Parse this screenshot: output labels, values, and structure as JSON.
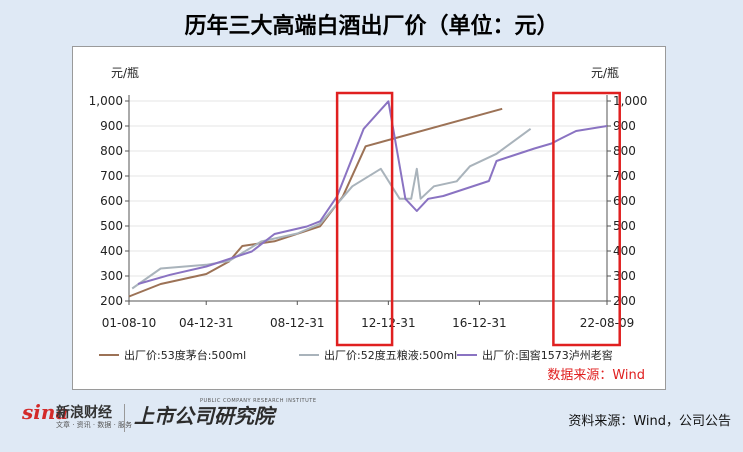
{
  "title": "历年三大高端白酒出厂价（单位：元）",
  "footer": {
    "source": "资料来源：Wind，公司公告",
    "sina_logo": "sina",
    "sina_name": "新浪财经",
    "sina_sub": "文章 · 资讯 · 数据 · 服务",
    "institute_name": "上市公司研究院",
    "institute_sub": "PUBLIC COMPANY RESEARCH INSTITUTE"
  },
  "chart_data": {
    "type": "line",
    "title": "",
    "unit_left": "元/瓶",
    "unit_right": "元/瓶",
    "xlabel": "",
    "ylabel": "元/瓶",
    "ylim": [
      200,
      1000
    ],
    "yticks": [
      200,
      300,
      400,
      500,
      600,
      700,
      800,
      900,
      "1,000"
    ],
    "x_tick_labels": [
      "01-08-10",
      "04-12-31",
      "08-12-31",
      "12-12-31",
      "16-12-31",
      "22-08-09"
    ],
    "x_tick_dates": [
      "2001-08-10",
      "2004-12-31",
      "2008-12-31",
      "2012-12-31",
      "2016-12-31",
      "2022-08-09"
    ],
    "xlim": [
      "2001-08-10",
      "2022-08-09"
    ],
    "grid": true,
    "legend_position": "bottom",
    "source_note": "数据来源：Wind",
    "highlight_boxes": [
      {
        "from": "2010-10-01",
        "to": "2013-03-01"
      },
      {
        "from": "2020-04-01",
        "to": "2023-03-01"
      }
    ],
    "series": [
      {
        "name": "出厂价:53度茅台:500ml",
        "color": "#9c7256",
        "points": [
          [
            "2001-08-10",
            218
          ],
          [
            "2003-01-01",
            268
          ],
          [
            "2005-01-01",
            308
          ],
          [
            "2006-01-01",
            358
          ],
          [
            "2006-08-01",
            420
          ],
          [
            "2008-01-01",
            439
          ],
          [
            "2010-01-01",
            499
          ],
          [
            "2011-01-01",
            619
          ],
          [
            "2012-01-01",
            819
          ],
          [
            "2018-01-01",
            969
          ]
        ]
      },
      {
        "name": "出厂价:52度五粮液:500ml",
        "color": "#a9b3bb",
        "points": [
          [
            "2001-10-01",
            250
          ],
          [
            "2003-01-01",
            330
          ],
          [
            "2004-12-31",
            345
          ],
          [
            "2006-01-01",
            360
          ],
          [
            "2007-06-01",
            438
          ],
          [
            "2008-12-31",
            470
          ],
          [
            "2010-01-01",
            509
          ],
          [
            "2011-06-01",
            659
          ],
          [
            "2012-09-01",
            729
          ],
          [
            "2013-07-01",
            609
          ],
          [
            "2014-01-01",
            609
          ],
          [
            "2014-04-01",
            729
          ],
          [
            "2014-06-01",
            609
          ],
          [
            "2015-01-01",
            659
          ],
          [
            "2016-01-01",
            679
          ],
          [
            "2016-08-01",
            739
          ],
          [
            "2017-10-01",
            789
          ],
          [
            "2019-04-01",
            889
          ]
        ]
      },
      {
        "name": "出厂价:国窖1573泸州老窖",
        "color": "#8a73c2",
        "points": [
          [
            "2002-01-01",
            268
          ],
          [
            "2003-06-01",
            305
          ],
          [
            "2005-01-01",
            338
          ],
          [
            "2007-01-01",
            398
          ],
          [
            "2008-01-01",
            468
          ],
          [
            "2009-06-01",
            498
          ],
          [
            "2010-01-01",
            519
          ],
          [
            "2010-10-01",
            619
          ],
          [
            "2011-12-01",
            889
          ],
          [
            "2013-01-01",
            999
          ],
          [
            "2013-10-01",
            609
          ],
          [
            "2014-04-01",
            560
          ],
          [
            "2014-10-01",
            609
          ],
          [
            "2015-06-01",
            620
          ],
          [
            "2017-06-01",
            680
          ],
          [
            "2017-10-01",
            760
          ],
          [
            "2018-06-01",
            780
          ],
          [
            "2019-06-01",
            810
          ],
          [
            "2020-03-01",
            830
          ],
          [
            "2020-08-01",
            850
          ],
          [
            "2021-04-01",
            880
          ],
          [
            "2022-08-09",
            900
          ]
        ]
      }
    ]
  }
}
